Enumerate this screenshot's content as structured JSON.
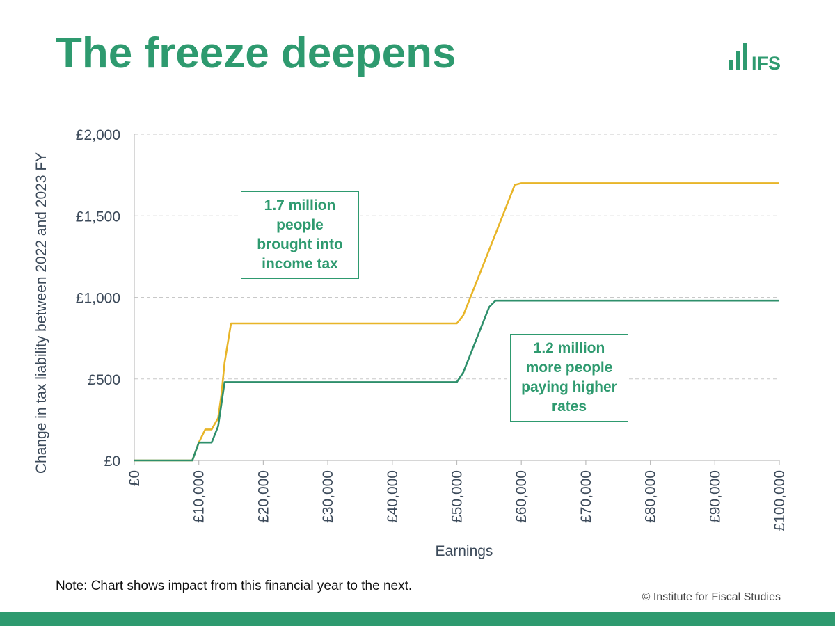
{
  "title": "The freeze deepens",
  "logo_text": "IFS",
  "note": "Note: Chart shows impact from this financial year to the next.",
  "copyright": "© Institute for Fiscal Studies",
  "colors": {
    "brand_green": "#2e9a6f",
    "series_gold": "#e8b528",
    "series_green": "#2e8f6b",
    "grid": "#c8c8c8",
    "axis_text": "#3c4a5a"
  },
  "annotations": {
    "top": "1.7 million people brought into income tax",
    "bottom": "1.2 million more people paying higher rates"
  },
  "chart_data": {
    "type": "line",
    "xlabel": "Earnings",
    "ylabel": "Change in tax liability  between 2022 and 2023 FY",
    "xlim": [
      0,
      100000
    ],
    "ylim": [
      0,
      2000
    ],
    "x_ticks": [
      0,
      10000,
      20000,
      30000,
      40000,
      50000,
      60000,
      70000,
      80000,
      90000,
      100000
    ],
    "x_tick_labels": [
      "£0",
      "£10,000",
      "£20,000",
      "£30,000",
      "£40,000",
      "£50,000",
      "£60,000",
      "£70,000",
      "£80,000",
      "£90,000",
      "£100,000"
    ],
    "y_ticks": [
      0,
      500,
      1000,
      1500,
      2000
    ],
    "y_tick_labels": [
      "£0",
      "£500",
      "£1,000",
      "£1,500",
      "£2,000"
    ],
    "grid": "horizontal dashed",
    "series": [
      {
        "color": "#e8b528",
        "points": [
          [
            0,
            0
          ],
          [
            9000,
            0
          ],
          [
            10000,
            110
          ],
          [
            11000,
            190
          ],
          [
            12000,
            190
          ],
          [
            13000,
            260
          ],
          [
            13500,
            400
          ],
          [
            14000,
            600
          ],
          [
            15000,
            840
          ],
          [
            50000,
            840
          ],
          [
            51000,
            890
          ],
          [
            55000,
            1290
          ],
          [
            59000,
            1690
          ],
          [
            60000,
            1700
          ],
          [
            100000,
            1700
          ]
        ]
      },
      {
        "color": "#2e8f6b",
        "points": [
          [
            0,
            0
          ],
          [
            9000,
            0
          ],
          [
            10000,
            110
          ],
          [
            12000,
            110
          ],
          [
            13000,
            210
          ],
          [
            14000,
            480
          ],
          [
            50000,
            480
          ],
          [
            51000,
            540
          ],
          [
            55000,
            940
          ],
          [
            56000,
            980
          ],
          [
            100000,
            980
          ]
        ]
      }
    ]
  }
}
